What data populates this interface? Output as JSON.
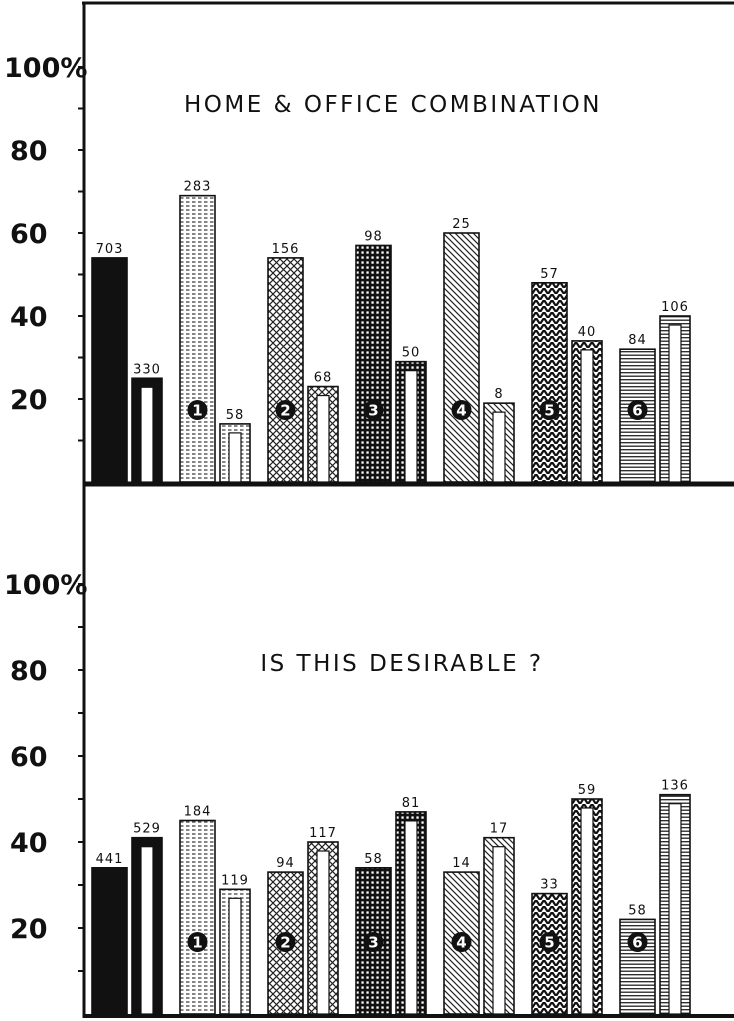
{
  "chart_data": [
    {
      "type": "bar",
      "title": "HOME & OFFICE COMBINATION",
      "yticks": [
        "20",
        "40",
        "60",
        "80",
        "100%"
      ],
      "ylim": [
        0,
        100
      ],
      "groups": [
        {
          "marker": "",
          "pattern": "solid",
          "bars": [
            {
              "kind": "filled",
              "value": 54,
              "label": "703"
            },
            {
              "kind": "outline",
              "value": 25,
              "label": "330"
            }
          ]
        },
        {
          "marker": "1",
          "pattern": "dots",
          "bars": [
            {
              "kind": "filled",
              "value": 69,
              "label": "283"
            },
            {
              "kind": "outline",
              "value": 14,
              "label": "58"
            }
          ]
        },
        {
          "marker": "2",
          "pattern": "crosshatch",
          "bars": [
            {
              "kind": "filled",
              "value": 54,
              "label": "156"
            },
            {
              "kind": "outline",
              "value": 23,
              "label": "68"
            }
          ]
        },
        {
          "marker": "3",
          "pattern": "grid",
          "bars": [
            {
              "kind": "filled",
              "value": 57,
              "label": "98"
            },
            {
              "kind": "outline",
              "value": 29,
              "label": "50"
            }
          ]
        },
        {
          "marker": "4",
          "pattern": "diagonal",
          "bars": [
            {
              "kind": "filled",
              "value": 60,
              "label": "25"
            },
            {
              "kind": "outline",
              "value": 19,
              "label": "8"
            }
          ]
        },
        {
          "marker": "5",
          "pattern": "herringbone",
          "bars": [
            {
              "kind": "filled",
              "value": 48,
              "label": "57"
            },
            {
              "kind": "outline",
              "value": 34,
              "label": "40"
            }
          ]
        },
        {
          "marker": "6",
          "pattern": "horizontal",
          "bars": [
            {
              "kind": "filled",
              "value": 32,
              "label": "84"
            },
            {
              "kind": "outline",
              "value": 40,
              "label": "106"
            }
          ]
        }
      ]
    },
    {
      "type": "bar",
      "title": "IS THIS DESIRABLE ?",
      "yticks": [
        "20",
        "40",
        "60",
        "80",
        "100%"
      ],
      "ylim": [
        0,
        100
      ],
      "groups": [
        {
          "marker": "",
          "pattern": "solid",
          "bars": [
            {
              "kind": "filled",
              "value": 34,
              "label": "441"
            },
            {
              "kind": "outline",
              "value": 41,
              "label": "529"
            }
          ]
        },
        {
          "marker": "1",
          "pattern": "dots",
          "bars": [
            {
              "kind": "filled",
              "value": 45,
              "label": "184"
            },
            {
              "kind": "outline",
              "value": 29,
              "label": "119"
            }
          ]
        },
        {
          "marker": "2",
          "pattern": "crosshatch",
          "bars": [
            {
              "kind": "filled",
              "value": 33,
              "label": "94"
            },
            {
              "kind": "outline",
              "value": 40,
              "label": "117"
            }
          ]
        },
        {
          "marker": "3",
          "pattern": "grid",
          "bars": [
            {
              "kind": "filled",
              "value": 34,
              "label": "58"
            },
            {
              "kind": "outline",
              "value": 47,
              "label": "81"
            }
          ]
        },
        {
          "marker": "4",
          "pattern": "diagonal",
          "bars": [
            {
              "kind": "filled",
              "value": 33,
              "label": "14"
            },
            {
              "kind": "outline",
              "value": 41,
              "label": "17"
            }
          ]
        },
        {
          "marker": "5",
          "pattern": "herringbone",
          "bars": [
            {
              "kind": "filled",
              "value": 28,
              "label": "33"
            },
            {
              "kind": "outline",
              "value": 50,
              "label": "59"
            }
          ]
        },
        {
          "marker": "6",
          "pattern": "horizontal",
          "bars": [
            {
              "kind": "filled",
              "value": 22,
              "label": "58"
            },
            {
              "kind": "outline",
              "value": 51,
              "label": "136"
            }
          ]
        }
      ]
    }
  ]
}
